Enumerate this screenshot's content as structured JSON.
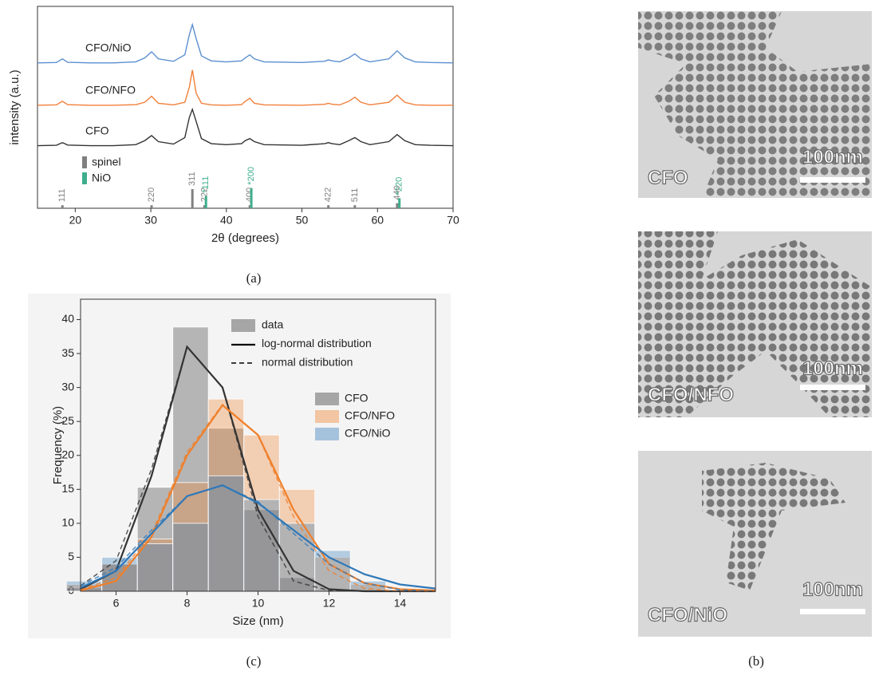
{
  "chart_data": [
    {
      "type": "line",
      "xlabel": "2θ (degrees)",
      "ylabel": "intensity (a.u.)",
      "xlim": [
        15,
        70
      ],
      "ylim": [
        0,
        10
      ],
      "xticks": [
        20,
        30,
        40,
        50,
        60,
        70
      ],
      "x": [
        15,
        17.5,
        18.3,
        19,
        22,
        25,
        28,
        29.2,
        30.1,
        31,
        33,
        34.5,
        35.1,
        35.5,
        36,
        36.7,
        38,
        40,
        42,
        42.5,
        43.1,
        43.7,
        45,
        50,
        53,
        53.5,
        54,
        55,
        56.2,
        57,
        57.8,
        59,
        61.5,
        62.6,
        63.6,
        65,
        67,
        70
      ],
      "series": [
        {
          "name": "CFO/NiO",
          "color": "#5b8fd0",
          "values": [
            7.2,
            7.22,
            7.4,
            7.23,
            7.2,
            7.2,
            7.25,
            7.45,
            7.75,
            7.4,
            7.28,
            7.6,
            8.6,
            9.1,
            8.4,
            7.55,
            7.3,
            7.25,
            7.3,
            7.45,
            7.6,
            7.4,
            7.25,
            7.22,
            7.28,
            7.35,
            7.3,
            7.25,
            7.45,
            7.65,
            7.4,
            7.25,
            7.4,
            7.8,
            7.45,
            7.25,
            7.22,
            7.2
          ]
        },
        {
          "name": "CFO/NFO",
          "color": "#f07f3a",
          "values": [
            5.1,
            5.12,
            5.3,
            5.13,
            5.1,
            5.1,
            5.13,
            5.25,
            5.55,
            5.2,
            5.12,
            5.25,
            6.0,
            6.85,
            5.7,
            5.2,
            5.12,
            5.1,
            5.13,
            5.3,
            5.45,
            5.2,
            5.12,
            5.1,
            5.15,
            5.2,
            5.15,
            5.12,
            5.3,
            5.5,
            5.25,
            5.12,
            5.25,
            5.6,
            5.25,
            5.12,
            5.1,
            5.1
          ]
        },
        {
          "name": "CFO",
          "color": "#333333",
          "values": [
            3.1,
            3.12,
            3.25,
            3.13,
            3.1,
            3.1,
            3.15,
            3.35,
            3.6,
            3.3,
            3.18,
            3.5,
            4.5,
            4.9,
            4.3,
            3.45,
            3.2,
            3.15,
            3.2,
            3.35,
            3.45,
            3.3,
            3.15,
            3.12,
            3.2,
            3.25,
            3.2,
            3.15,
            3.35,
            3.5,
            3.3,
            3.15,
            3.3,
            3.65,
            3.35,
            3.15,
            3.12,
            3.1
          ]
        }
      ],
      "references": [
        {
          "name": "spinel",
          "color": "#808080",
          "positions": [
            18.3,
            30.1,
            35.5,
            37.1,
            43.1,
            53.5,
            57.0,
            62.6
          ],
          "heights": [
            0.15,
            0.15,
            0.95,
            0.15,
            0.15,
            0.15,
            0.15,
            0.25
          ],
          "labels": [
            "111",
            "220",
            "311",
            "222",
            "400",
            "422",
            "511",
            "440"
          ]
        },
        {
          "name": "NiO",
          "color": "#3fae8c",
          "positions": [
            37.3,
            43.3,
            62.9
          ],
          "heights": [
            0.6,
            1.0,
            0.5
          ],
          "labels": [
            "*111",
            "*200",
            "*220"
          ]
        }
      ]
    },
    {
      "type": "histogram",
      "xlabel": "Size (nm)",
      "ylabel": "Frequency (%)",
      "xlim": [
        5,
        15
      ],
      "ylim": [
        0,
        43
      ],
      "xticks": [
        6,
        8,
        10,
        12,
        14
      ],
      "yticks": [
        0,
        5,
        10,
        15,
        20,
        25,
        30,
        35,
        40
      ],
      "bins": [
        4.6,
        5.6,
        6.6,
        7.6,
        8.6,
        9.6,
        10.6,
        11.6,
        12.6,
        13.6
      ],
      "fit_x": [
        5,
        6,
        7,
        8,
        9,
        10,
        11,
        12,
        13,
        14,
        15
      ],
      "legend_styles": [
        "data",
        "log-normal distribution",
        "normal distribution"
      ],
      "series": [
        {
          "name": "CFO",
          "color": "#333333",
          "values": [
            0.5,
            4,
            15.3,
            38.9,
            24,
            12,
            2,
            0,
            0
          ],
          "fit_lognormal": [
            0.3,
            3,
            17,
            36,
            30,
            12,
            3,
            0.3,
            0,
            0,
            0
          ],
          "fit_normal": [
            0.8,
            4.5,
            18,
            36,
            30,
            11,
            1.5,
            0.1,
            0,
            0,
            0
          ]
        },
        {
          "name": "CFO/NFO",
          "color": "#f07f2a",
          "values": [
            1,
            4,
            7.7,
            16,
            28.3,
            23,
            15,
            5,
            1
          ],
          "fit_lognormal": [
            0.1,
            1.5,
            8,
            20,
            27.4,
            23,
            12,
            4,
            1.2,
            0.3,
            0.1
          ],
          "fit_normal": [
            0.2,
            2,
            8.5,
            20.5,
            27.5,
            23,
            11,
            3,
            0.4,
            0,
            0
          ]
        },
        {
          "name": "CFO/NiO",
          "color": "#2f78b8",
          "values": [
            1.5,
            5,
            7,
            10,
            17,
            13.5,
            10,
            6,
            1.5
          ],
          "fit_lognormal": [
            0.5,
            3,
            8.5,
            14,
            15.6,
            13,
            9,
            5,
            2.5,
            1,
            0.4
          ],
          "fit_normal": [
            0.8,
            3.5,
            9,
            14,
            15.6,
            13.2,
            8.5,
            4,
            1.2,
            0.2,
            0
          ]
        }
      ]
    }
  ],
  "captions": [
    "(a)",
    "(c)",
    "(b)"
  ],
  "images": [
    {
      "label": "CFO",
      "scale": "100nm"
    },
    {
      "label": "CFO/NFO",
      "scale": "100nm"
    },
    {
      "label": "CFO/NiO",
      "scale": "100nm"
    }
  ]
}
